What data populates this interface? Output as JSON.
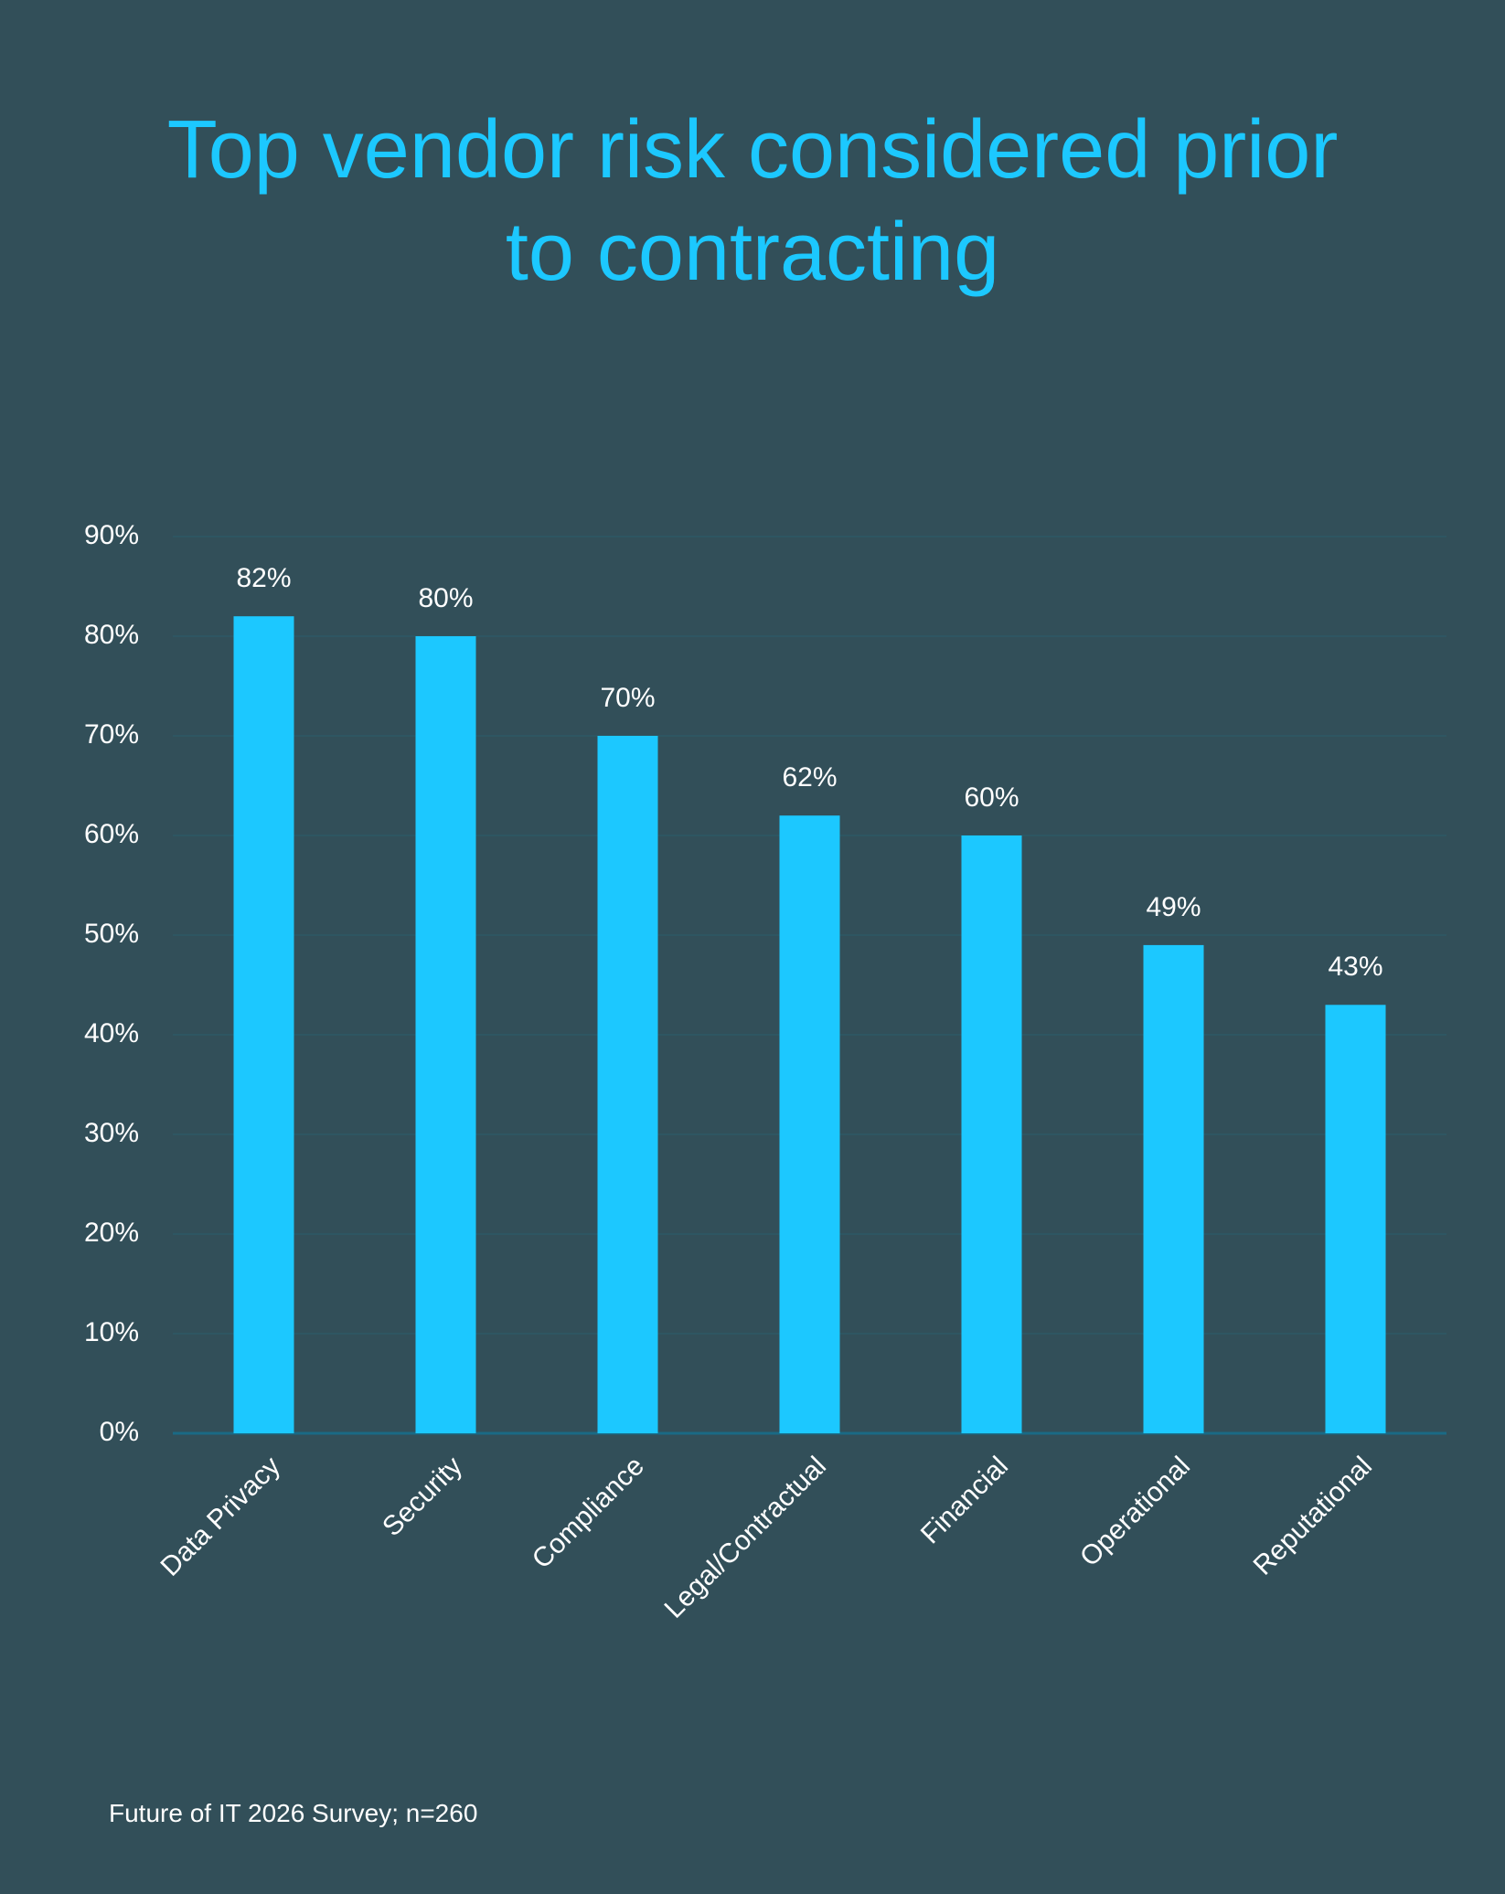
{
  "chart_data": {
    "type": "bar",
    "title": "Top vendor risk considered prior to contracting",
    "categories": [
      "Data Privacy",
      "Security",
      "Compliance",
      "Legal/Contractual",
      "Financial",
      "Operational",
      "Reputational"
    ],
    "values": [
      82,
      80,
      70,
      62,
      60,
      49,
      43
    ],
    "value_labels": [
      "82%",
      "80%",
      "70%",
      "62%",
      "60%",
      "49%",
      "43%"
    ],
    "color": "#1cc8ff",
    "ylim": [
      0,
      90
    ],
    "yticks": [
      {
        "value": 0,
        "label": "0%"
      },
      {
        "value": 10,
        "label": "10%"
      },
      {
        "value": 20,
        "label": "20%"
      },
      {
        "value": 30,
        "label": "30%"
      },
      {
        "value": 40,
        "label": "40%"
      },
      {
        "value": 50,
        "label": "50%"
      },
      {
        "value": 60,
        "label": "60%"
      },
      {
        "value": 70,
        "label": "70%"
      },
      {
        "value": 80,
        "label": "80%"
      },
      {
        "value": 90,
        "label": "90%"
      }
    ],
    "grid": true,
    "source": "Future of IT 2026 Survey; n=260"
  }
}
